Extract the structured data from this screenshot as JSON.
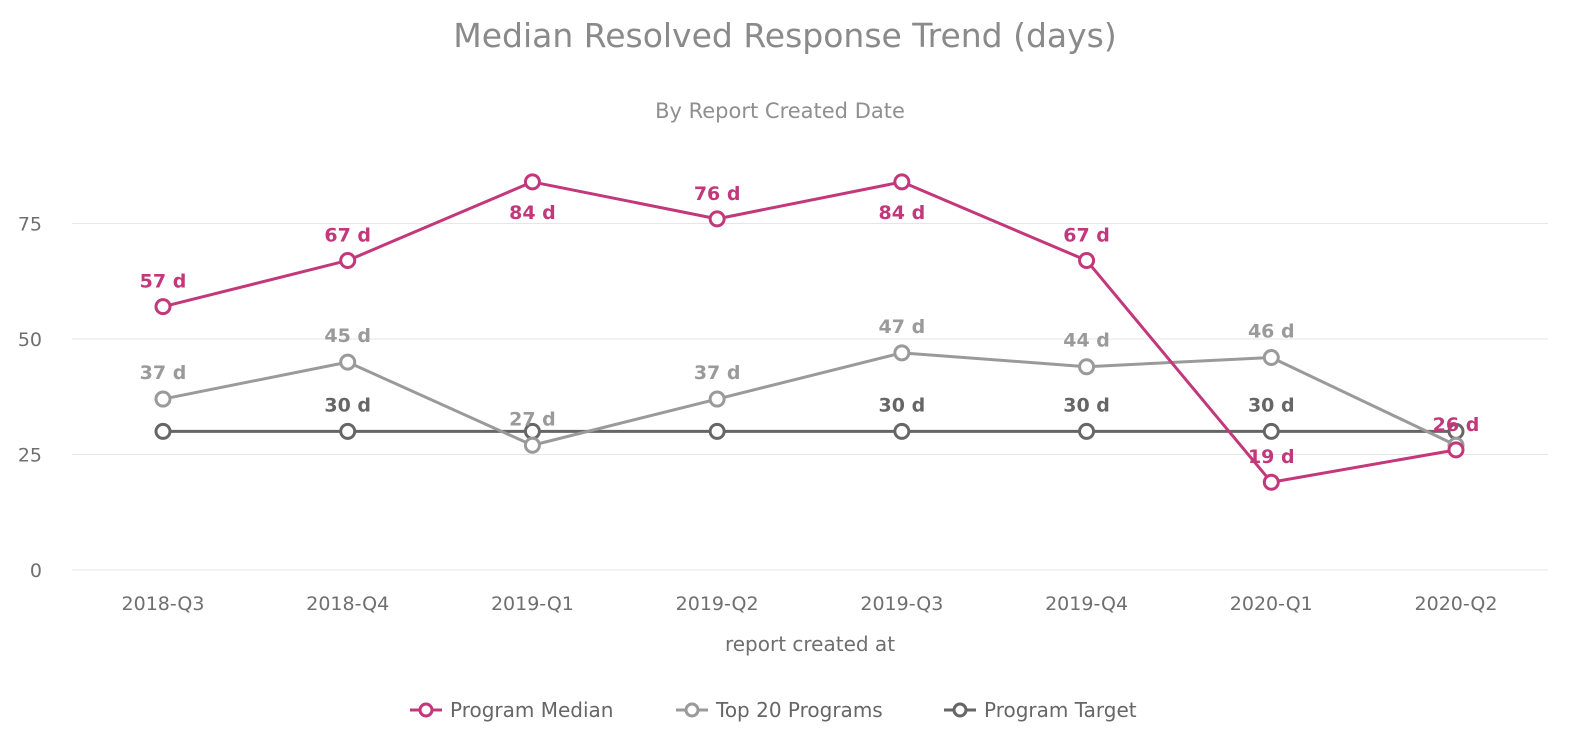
{
  "chart_data": {
    "type": "line",
    "title": "Median Resolved Response Trend (days)",
    "subtitle": "By Report Created Date",
    "xlabel": "report created at",
    "ylabel": "",
    "categories": [
      "2018-Q3",
      "2018-Q4",
      "2019-Q1",
      "2019-Q2",
      "2019-Q3",
      "2019-Q4",
      "2020-Q1",
      "2020-Q2"
    ],
    "ylim": [
      0,
      90
    ],
    "yticks": [
      0,
      25,
      50,
      75
    ],
    "grid": true,
    "legend_position": "bottom",
    "series": [
      {
        "name": "Program Median",
        "color": "#c2387a",
        "values": [
          57,
          67,
          84,
          76,
          84,
          67,
          19,
          26
        ],
        "labels": [
          "57 d",
          "67 d",
          "84 d",
          "76 d",
          "84 d",
          "67 d",
          "19 d",
          "26 d"
        ]
      },
      {
        "name": "Top 20 Programs",
        "color": "#9a9a9a",
        "values": [
          37,
          45,
          27,
          37,
          47,
          44,
          46,
          27
        ],
        "labels": [
          "37 d",
          "45 d",
          "27 d",
          "37 d",
          "47 d",
          "44 d",
          "46 d",
          ""
        ]
      },
      {
        "name": "Program Target",
        "color": "#666666",
        "values": [
          30,
          30,
          30,
          30,
          30,
          30,
          30,
          30
        ],
        "labels": [
          "",
          "30 d",
          "",
          "",
          "30 d",
          "30 d",
          "30 d",
          ""
        ]
      }
    ]
  }
}
